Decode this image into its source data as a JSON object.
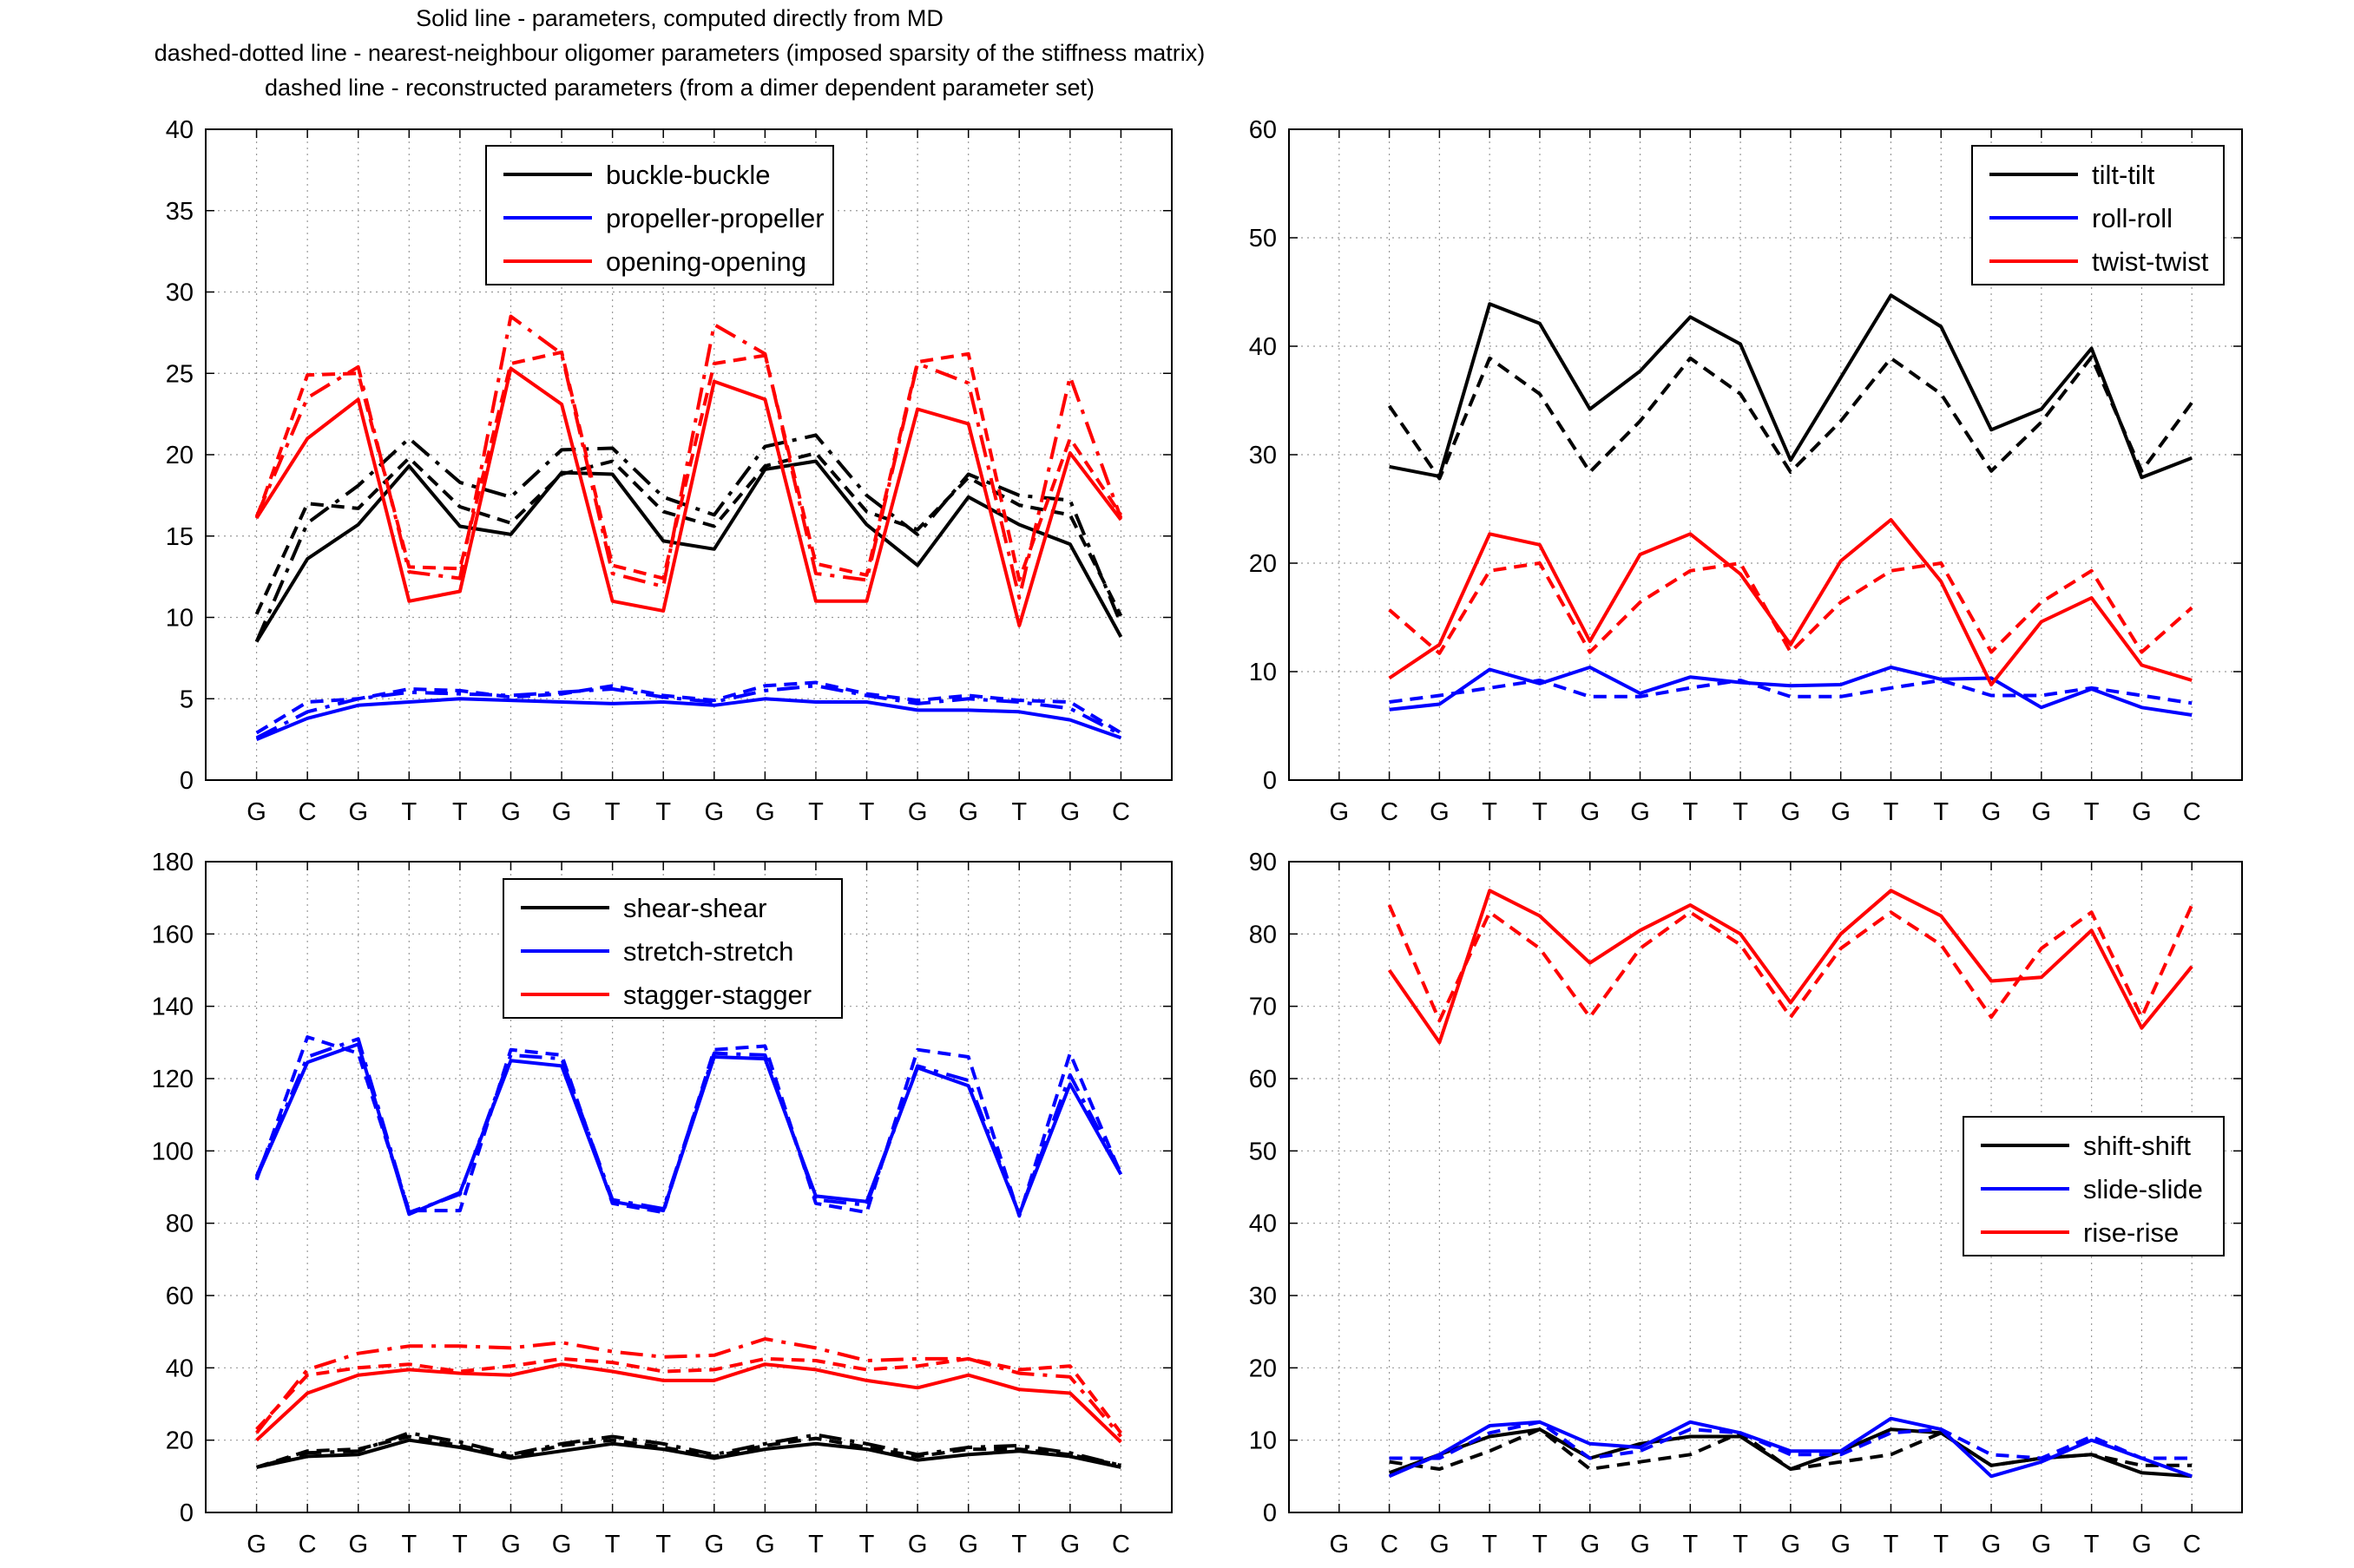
{
  "figure": {
    "title_lines": [
      "Solid line - parameters, computed directly from MD",
      "dashed-dotted line - nearest-neighbour oligomer parameters (imposed sparsity of the stiffness matrix)",
      "dashed line - reconstructed parameters (from a dimer dependent parameter set)"
    ],
    "colors": {
      "black": "#000000",
      "blue": "#0000ff",
      "red": "#ff0000",
      "grid": "#999999"
    }
  },
  "chart_data": [
    {
      "type": "line",
      "title": "",
      "xlabel": "",
      "ylabel": "",
      "categories": [
        "G",
        "C",
        "G",
        "T",
        "T",
        "G",
        "G",
        "T",
        "T",
        "G",
        "G",
        "T",
        "T",
        "G",
        "G",
        "T",
        "G",
        "C"
      ],
      "ylim": [
        0,
        40
      ],
      "yticks": [
        0,
        5,
        10,
        15,
        20,
        25,
        30,
        35,
        40
      ],
      "grid": true,
      "legend_position": "top-center",
      "series": [
        {
          "name": "buckle-buckle",
          "color": "#000000",
          "solid": [
            8.5,
            13.6,
            15.7,
            19.3,
            15.6,
            15.1,
            18.9,
            18.8,
            14.7,
            14.2,
            19.1,
            19.6,
            15.7,
            13.2,
            17.4,
            15.7,
            14.5,
            8.8
          ],
          "dashdot": [
            8.5,
            15.8,
            18.1,
            21.0,
            18.3,
            17.4,
            20.3,
            20.4,
            17.4,
            16.3,
            20.5,
            21.2,
            17.5,
            15.1,
            18.8,
            17.5,
            17.2,
            9.6
          ],
          "dashed": [
            10.2,
            17.0,
            16.7,
            19.8,
            16.8,
            15.8,
            18.8,
            19.6,
            16.5,
            15.6,
            19.3,
            20.1,
            16.5,
            15.4,
            18.6,
            16.9,
            16.3,
            10.1
          ]
        },
        {
          "name": "propeller-propeller",
          "color": "#0000ff",
          "solid": [
            2.5,
            3.8,
            4.6,
            4.8,
            5.0,
            4.9,
            4.8,
            4.7,
            4.8,
            4.6,
            5.0,
            4.8,
            4.8,
            4.3,
            4.3,
            4.2,
            3.7,
            2.6
          ],
          "dashdot": [
            2.6,
            4.2,
            5.0,
            5.4,
            5.3,
            5.2,
            5.4,
            5.6,
            5.1,
            4.8,
            5.5,
            5.8,
            5.2,
            4.7,
            5.0,
            4.8,
            4.4,
            2.8
          ],
          "dashed": [
            2.9,
            4.8,
            5.0,
            5.6,
            5.5,
            5.1,
            5.3,
            5.8,
            5.2,
            4.9,
            5.8,
            6.0,
            5.3,
            4.9,
            5.2,
            4.9,
            4.8,
            2.9
          ]
        },
        {
          "name": "opening-opening",
          "color": "#ff0000",
          "solid": [
            16.1,
            21.0,
            23.4,
            11.0,
            11.6,
            25.3,
            23.1,
            11.0,
            10.4,
            24.5,
            23.4,
            11.0,
            11.0,
            22.8,
            21.9,
            9.5,
            20.1,
            16.0
          ],
          "dashdot": [
            16.2,
            23.5,
            25.4,
            12.8,
            12.4,
            28.5,
            26.2,
            12.7,
            11.9,
            28.0,
            26.2,
            12.7,
            12.3,
            25.6,
            24.4,
            11.2,
            24.8,
            16.1
          ],
          "dashed": [
            16.1,
            24.9,
            25.0,
            13.1,
            13.0,
            25.6,
            26.3,
            13.2,
            12.4,
            25.6,
            26.1,
            13.3,
            12.6,
            25.7,
            26.2,
            12.3,
            21.0,
            16.3
          ]
        }
      ]
    },
    {
      "type": "line",
      "title": "",
      "xlabel": "",
      "ylabel": "",
      "categories": [
        "G",
        "C",
        "G",
        "T",
        "T",
        "G",
        "G",
        "T",
        "T",
        "G",
        "G",
        "T",
        "T",
        "G",
        "G",
        "T",
        "G",
        "C"
      ],
      "ylim": [
        0,
        60
      ],
      "yticks": [
        0,
        10,
        20,
        30,
        40,
        50,
        60
      ],
      "grid": true,
      "legend_position": "top-right",
      "series": [
        {
          "name": "tilt-tilt",
          "color": "#000000",
          "solid": [
            null,
            28.9,
            28.0,
            43.9,
            42.1,
            34.2,
            37.7,
            42.7,
            40.2,
            29.5,
            37.1,
            44.7,
            41.8,
            32.3,
            34.2,
            39.8,
            27.9,
            29.7
          ],
          "dashed": [
            null,
            34.5,
            27.8,
            38.9,
            35.6,
            28.4,
            33.1,
            38.9,
            35.6,
            28.4,
            33.1,
            38.9,
            35.6,
            28.5,
            33.0,
            39.0,
            28.5,
            34.8
          ]
        },
        {
          "name": "roll-roll",
          "color": "#0000ff",
          "solid": [
            null,
            6.5,
            7.0,
            10.2,
            8.9,
            10.4,
            8.0,
            9.5,
            9.0,
            8.7,
            8.8,
            10.4,
            9.3,
            9.4,
            6.7,
            8.4,
            6.7,
            6.0
          ],
          "dashed": [
            null,
            7.2,
            7.8,
            8.5,
            9.2,
            7.7,
            7.7,
            8.5,
            9.2,
            7.7,
            7.7,
            8.5,
            9.2,
            7.8,
            7.8,
            8.5,
            7.8,
            7.1
          ]
        },
        {
          "name": "twist-twist",
          "color": "#ff0000",
          "solid": [
            null,
            9.4,
            12.5,
            22.7,
            21.7,
            12.8,
            20.8,
            22.7,
            19.0,
            12.5,
            20.2,
            24.0,
            18.3,
            8.8,
            14.6,
            16.8,
            10.6,
            9.2
          ],
          "dashed": [
            null,
            15.7,
            11.7,
            19.3,
            20.0,
            11.8,
            16.4,
            19.3,
            20.0,
            11.8,
            16.4,
            19.3,
            20.0,
            11.8,
            16.4,
            19.3,
            11.8,
            15.9
          ]
        }
      ]
    },
    {
      "type": "line",
      "title": "",
      "xlabel": "",
      "ylabel": "",
      "categories": [
        "G",
        "C",
        "G",
        "T",
        "T",
        "G",
        "G",
        "T",
        "T",
        "G",
        "G",
        "T",
        "T",
        "G",
        "G",
        "T",
        "G",
        "C"
      ],
      "ylim": [
        0,
        180
      ],
      "yticks": [
        0,
        20,
        40,
        60,
        80,
        100,
        120,
        140,
        160,
        180
      ],
      "grid": true,
      "legend_position": "top-center",
      "series": [
        {
          "name": "shear-shear",
          "color": "#000000",
          "solid": [
            12.5,
            15.5,
            16.0,
            20.0,
            18.0,
            15.0,
            17.0,
            19.0,
            17.5,
            15.0,
            17.5,
            19.0,
            17.5,
            14.5,
            16.0,
            17.0,
            15.5,
            12.5
          ],
          "dashdot": [
            12.5,
            16.5,
            17.0,
            22.0,
            19.5,
            16.0,
            19.0,
            21.0,
            19.0,
            16.0,
            19.0,
            21.5,
            19.0,
            16.0,
            18.0,
            18.5,
            16.5,
            13.0
          ],
          "dashed": [
            12.5,
            17.0,
            17.5,
            21.0,
            18.5,
            15.5,
            18.5,
            20.0,
            18.0,
            15.5,
            18.5,
            20.5,
            18.0,
            15.5,
            17.5,
            17.5,
            16.0,
            13.0
          ]
        },
        {
          "name": "stretch-stretch",
          "color": "#0000ff",
          "solid": [
            92.5,
            124.5,
            129.5,
            82.5,
            88.5,
            125.0,
            123.5,
            86.0,
            83.5,
            126.0,
            125.5,
            87.5,
            86.0,
            123.0,
            118.0,
            82.5,
            118.5,
            93.5
          ],
          "dashdot": [
            93.0,
            126.0,
            131.0,
            83.0,
            88.0,
            126.5,
            125.5,
            86.5,
            84.0,
            127.0,
            126.5,
            86.5,
            85.0,
            123.5,
            119.5,
            82.5,
            121.0,
            94.0
          ],
          "dashed": [
            92.0,
            131.5,
            127.0,
            83.5,
            83.5,
            128.0,
            126.5,
            85.5,
            83.0,
            128.0,
            129.0,
            85.5,
            83.0,
            128.0,
            126.0,
            82.0,
            127.0,
            93.5
          ]
        },
        {
          "name": "stagger-stagger",
          "color": "#ff0000",
          "solid": [
            20.0,
            33.0,
            38.0,
            39.5,
            38.5,
            38.0,
            41.0,
            39.0,
            36.5,
            36.5,
            41.0,
            39.5,
            36.5,
            34.5,
            38.0,
            34.0,
            33.0,
            19.5
          ],
          "dashdot": [
            22.0,
            39.5,
            44.0,
            46.0,
            46.0,
            45.5,
            47.0,
            44.5,
            43.0,
            43.5,
            48.0,
            45.5,
            42.0,
            42.5,
            42.5,
            38.5,
            37.5,
            21.0
          ],
          "dashed": [
            23.0,
            38.0,
            40.0,
            41.0,
            39.0,
            40.5,
            42.5,
            41.5,
            39.0,
            39.5,
            42.5,
            42.0,
            39.5,
            40.5,
            42.5,
            39.5,
            40.5,
            22.0
          ]
        }
      ]
    },
    {
      "type": "line",
      "title": "",
      "xlabel": "",
      "ylabel": "",
      "categories": [
        "G",
        "C",
        "G",
        "T",
        "T",
        "G",
        "G",
        "T",
        "T",
        "G",
        "G",
        "T",
        "T",
        "G",
        "G",
        "T",
        "G",
        "C"
      ],
      "ylim": [
        0,
        90
      ],
      "yticks": [
        0,
        10,
        20,
        30,
        40,
        50,
        60,
        70,
        80,
        90
      ],
      "grid": true,
      "legend_position": "middle-right",
      "series": [
        {
          "name": "shift-shift",
          "color": "#000000",
          "solid": [
            null,
            5.5,
            8.0,
            10.5,
            11.5,
            7.5,
            9.5,
            10.5,
            10.5,
            6.0,
            8.5,
            11.5,
            11.0,
            6.5,
            7.5,
            8.0,
            5.5,
            5.0
          ],
          "dashed": [
            null,
            7.0,
            6.0,
            8.5,
            11.5,
            6.0,
            7.0,
            8.0,
            11.0,
            6.0,
            7.0,
            8.0,
            11.0,
            6.5,
            7.5,
            8.0,
            6.5,
            6.5
          ]
        },
        {
          "name": "slide-slide",
          "color": "#0000ff",
          "solid": [
            null,
            5.0,
            8.0,
            12.0,
            12.5,
            9.5,
            9.0,
            12.5,
            11.0,
            8.5,
            8.5,
            13.0,
            11.5,
            5.0,
            7.0,
            10.0,
            7.5,
            5.0
          ],
          "dashed": [
            null,
            7.5,
            7.5,
            11.0,
            12.5,
            7.5,
            8.5,
            11.5,
            11.0,
            8.0,
            8.0,
            11.0,
            11.5,
            8.0,
            7.5,
            10.5,
            7.5,
            7.5
          ]
        },
        {
          "name": "rise-rise",
          "color": "#ff0000",
          "solid": [
            null,
            75.0,
            65.0,
            86.0,
            82.5,
            76.0,
            80.5,
            84.0,
            80.0,
            70.5,
            80.0,
            86.0,
            82.5,
            73.5,
            74.0,
            80.5,
            67.0,
            75.5
          ],
          "dashed": [
            null,
            84.0,
            68.0,
            83.0,
            78.0,
            68.5,
            78.0,
            83.0,
            78.5,
            68.5,
            78.0,
            83.0,
            78.5,
            68.5,
            78.0,
            83.0,
            68.5,
            84.0
          ]
        }
      ]
    }
  ]
}
